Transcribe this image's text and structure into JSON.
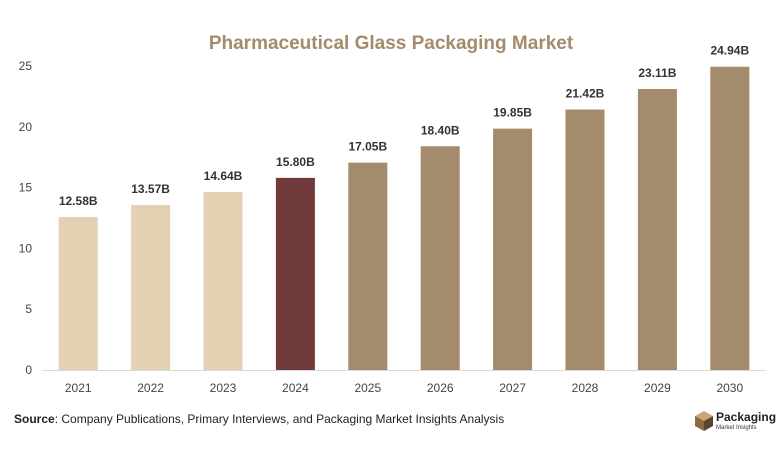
{
  "chart_data": {
    "type": "bar",
    "title": "Pharmaceutical Glass Packaging Market",
    "categories": [
      "2021",
      "2022",
      "2023",
      "2024",
      "2025",
      "2026",
      "2027",
      "2028",
      "2029",
      "2030"
    ],
    "values": [
      12.58,
      13.57,
      14.64,
      15.8,
      17.05,
      18.4,
      19.85,
      21.42,
      23.11,
      24.94
    ],
    "data_labels": [
      "12.58B",
      "13.57B",
      "14.64B",
      "15.80B",
      "17.05B",
      "18.40B",
      "19.85B",
      "21.42B",
      "23.11B",
      "24.94B"
    ],
    "yticks": [
      "0",
      "5",
      "10",
      "15",
      "20",
      "25"
    ],
    "ylim": [
      0,
      25
    ],
    "grid": false,
    "colors": {
      "historical": "#e3d1b3",
      "current": "#723b3b",
      "forecast": "#a38b6c",
      "title": "#a38b6c"
    },
    "bar_colors": [
      "historical",
      "historical",
      "historical",
      "current",
      "forecast",
      "forecast",
      "forecast",
      "forecast",
      "forecast",
      "forecast"
    ]
  },
  "source": {
    "label": "Source",
    "text": ": Company Publications, Primary Interviews, and Packaging Market Insights Analysis"
  },
  "logo": {
    "name": "Packaging",
    "subtitle": "Market Insights",
    "icon": "box-icon"
  }
}
